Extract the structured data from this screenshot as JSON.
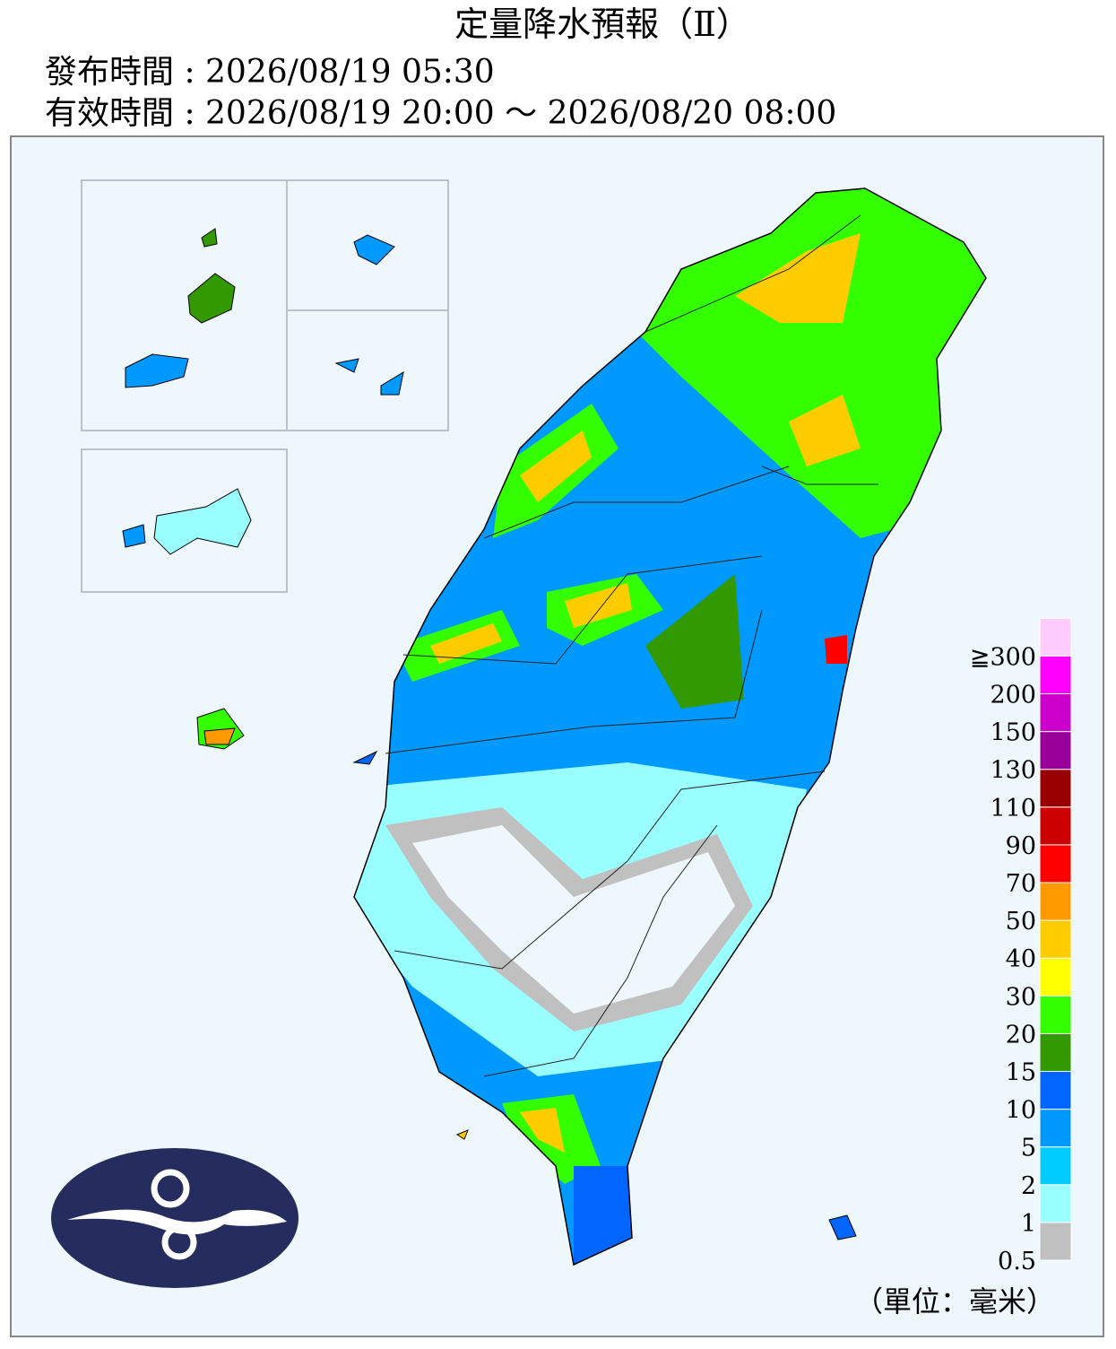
{
  "header": {
    "title": "定量降水預報（Ⅱ）",
    "issued": "發布時間 : 2026/08/19 05:30",
    "valid": "有效時間 : 2026/08/19 20:00 ～ 2026/08/20 08:00"
  },
  "legend": {
    "unit": "（單位：毫米）",
    "levels": [
      {
        "label": "0.5",
        "color": "#c0c0c0"
      },
      {
        "label": "1",
        "color": "#99ffff"
      },
      {
        "label": "2",
        "color": "#00ccff"
      },
      {
        "label": "5",
        "color": "#0099ff"
      },
      {
        "label": "10",
        "color": "#0066ff"
      },
      {
        "label": "15",
        "color": "#339900"
      },
      {
        "label": "20",
        "color": "#33ff00"
      },
      {
        "label": "30",
        "color": "#ffff00"
      },
      {
        "label": "40",
        "color": "#ffcc00"
      },
      {
        "label": "50",
        "color": "#ff9900"
      },
      {
        "label": "70",
        "color": "#ff0000"
      },
      {
        "label": "90",
        "color": "#cc0000"
      },
      {
        "label": "110",
        "color": "#990000"
      },
      {
        "label": "130",
        "color": "#990099"
      },
      {
        "label": "150",
        "color": "#cc00cc"
      },
      {
        "label": "200",
        "color": "#ff00ff"
      },
      {
        "label": "≧300",
        "color": "#ffccff"
      }
    ]
  }
}
